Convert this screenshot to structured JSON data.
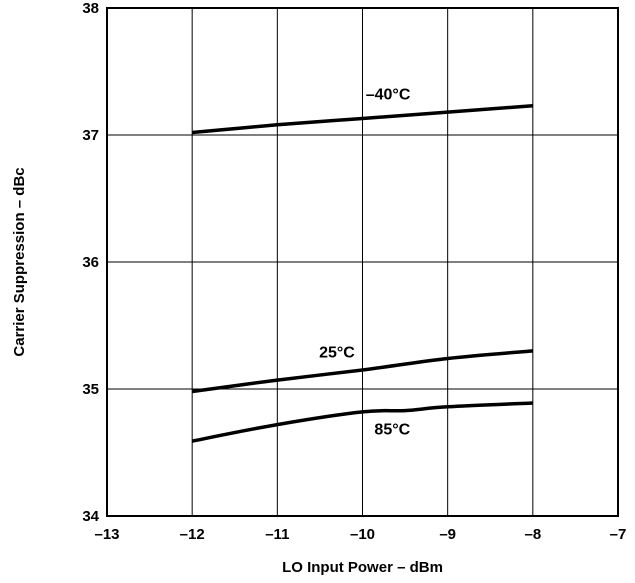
{
  "chart_data": {
    "type": "line",
    "title": "",
    "xlabel": "LO Input Power – dBm",
    "ylabel": "Carrier Suppression – dBc",
    "xlim": [
      -13,
      -7
    ],
    "ylim": [
      34,
      38
    ],
    "xticks": [
      -13,
      -12,
      -11,
      -10,
      -9,
      -8,
      -7
    ],
    "xtick_labels": [
      "–13",
      "–12",
      "–11",
      "–10",
      "–9",
      "–8",
      "–7"
    ],
    "yticks": [
      34,
      35,
      36,
      37,
      38
    ],
    "ytick_labels": [
      "34",
      "35",
      "36",
      "37",
      "38"
    ],
    "grid": true,
    "legend": "none",
    "series": [
      {
        "name": "–40°C",
        "x": [
          -12,
          -11,
          -10,
          -9,
          -8
        ],
        "y": [
          37.02,
          37.08,
          37.13,
          37.18,
          37.23
        ]
      },
      {
        "name": "25°C",
        "x": [
          -12,
          -11,
          -10,
          -9,
          -8
        ],
        "y": [
          34.98,
          35.07,
          35.15,
          35.24,
          35.3
        ]
      },
      {
        "name": "85°C",
        "x": [
          -12,
          -11,
          -10,
          -9.5,
          -9,
          -8
        ],
        "y": [
          34.59,
          34.72,
          34.82,
          34.83,
          34.86,
          34.89
        ]
      }
    ]
  }
}
